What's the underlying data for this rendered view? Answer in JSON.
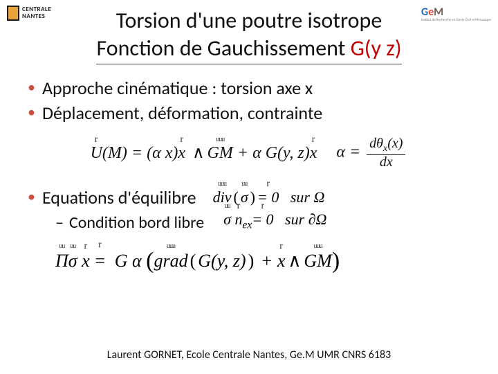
{
  "logos": {
    "left_line1": "CENTRALE",
    "left_line2": "NANTES",
    "right_g": "G",
    "right_e": "e",
    "right_m": "M",
    "right_sub": "Institut de Recherche en Génie Civil et Mécanique"
  },
  "title": {
    "line1": "Torsion d'une poutre isotrope",
    "line2a": "Fonction de Gauchissement ",
    "line2b": "G(y z)"
  },
  "bullets": {
    "b1": "Approche cinématique : torsion axe x",
    "b2": "Déplacement, déformation, contrainte",
    "b3": "Equations d'équilibre",
    "sub1": "Condition bord libre"
  },
  "equations": {
    "eq1_lhs": "U",
    "eq1_arg": "(M)",
    "eq1_eq": " = (",
    "eq1_alpha": "α x",
    "eq1_rp": ")",
    "eq1_x": "x",
    "eq1_wedge": "∧",
    "eq1_gm": "GM",
    "eq1_plus": " + α ",
    "eq1_g": "G",
    "eq1_gyz": "(y, z)",
    "eq1_x2": "x",
    "eq2_alpha": "α =",
    "eq2_num": "dθ",
    "eq2_numsub": "x",
    "eq2_numx": "(x)",
    "eq2_den": "dx",
    "eq3_div": "div",
    "eq3_sigma": "σ",
    "eq3_rhs": " = 0",
    "eq3_sur": "sur Ω",
    "eq4_sigma": "σ",
    "eq4_n": "n",
    "eq4_nsub": "ex",
    "eq4_rhs": " = 0",
    "eq4_sur": "sur ∂Ω",
    "eq5_pi": "Π",
    "eq5_sigma": "σ",
    "eq5_x": "x",
    "eq5_eq": " = G α ",
    "eq5_grad": "grad",
    "eq5_g": "G",
    "eq5_gyz": "(y, z)",
    "eq5_plus": " + ",
    "eq5_x2": "x",
    "eq5_wedge": "∧",
    "eq5_gm": "GM"
  },
  "footer": "Laurent GORNET, Ecole Centrale Nantes, Ge.M UMR CNRS 6183",
  "colors": {
    "accent_red": "#c00000",
    "bullet_color": "#c94f3e",
    "logo_orange": "#e8a33d",
    "gem_blue": "#1a6fb3",
    "gem_red": "#e84c3d",
    "gem_brown": "#6b6257"
  }
}
